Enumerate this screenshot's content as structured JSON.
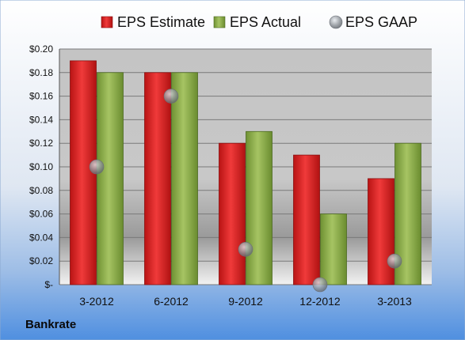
{
  "brand": "Bankrate",
  "chart_data": {
    "type": "bar",
    "categories": [
      "3-2012",
      "6-2012",
      "9-2012",
      "12-2012",
      "3-2013"
    ],
    "series": [
      {
        "name": "EPS Estimate",
        "values": [
          0.19,
          0.18,
          0.12,
          0.11,
          0.09
        ],
        "color": "#d42020",
        "kind": "bar"
      },
      {
        "name": "EPS Actual",
        "values": [
          0.18,
          0.18,
          0.13,
          0.06,
          0.12
        ],
        "color": "#8fb04a",
        "kind": "bar"
      },
      {
        "name": "EPS GAAP",
        "values": [
          0.1,
          0.16,
          0.03,
          0.0,
          0.02
        ],
        "color": "#9aa3ad",
        "kind": "marker"
      }
    ],
    "y_ticks": [
      "$-",
      "$0.02",
      "$0.04",
      "$0.06",
      "$0.08",
      "$0.10",
      "$0.12",
      "$0.14",
      "$0.16",
      "$0.18",
      "$0.20"
    ],
    "ylim": [
      0,
      0.2
    ],
    "grid": true,
    "legend_position": "top"
  }
}
